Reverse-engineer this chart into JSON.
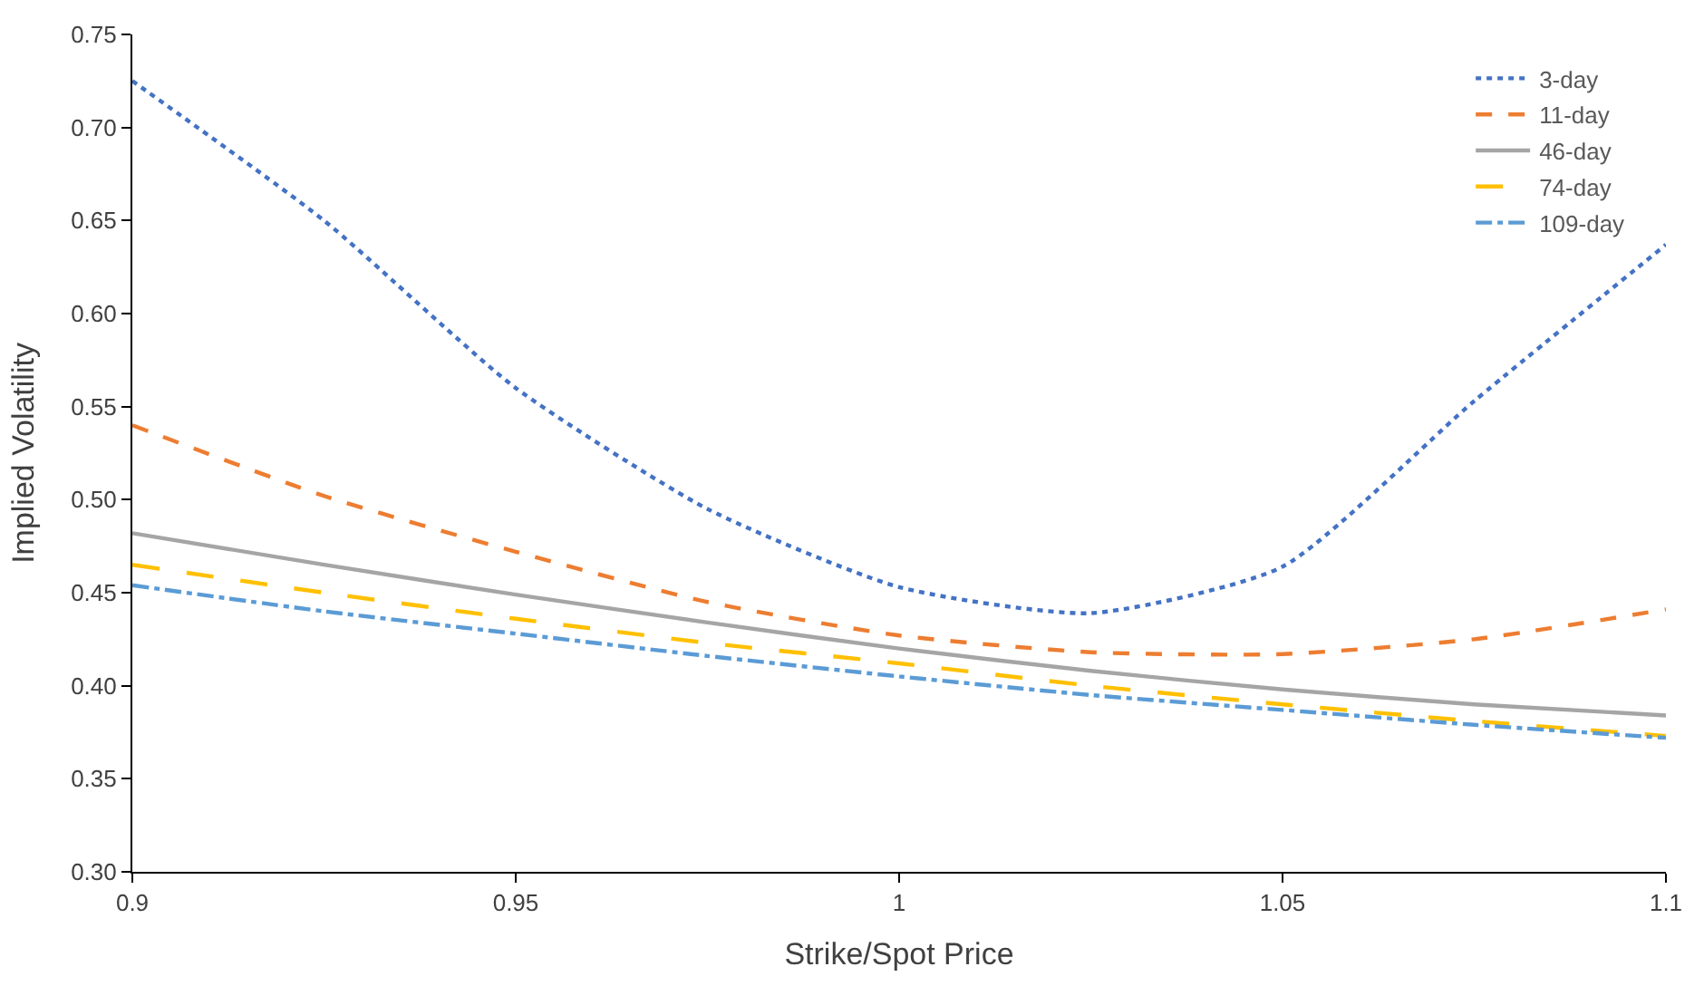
{
  "chart_data": {
    "type": "line",
    "xlabel": "Strike/Spot Price",
    "ylabel": "Implied Volatility",
    "x": [
      0.9,
      0.925,
      0.95,
      0.975,
      1.0,
      1.025,
      1.05,
      1.075,
      1.1
    ],
    "series": [
      {
        "name": "3-day",
        "color": "#4472c4",
        "line_style": "dotted",
        "values": [
          0.725,
          0.65,
          0.56,
          0.495,
          0.453,
          0.439,
          0.464,
          0.553,
          0.637
        ]
      },
      {
        "name": "11-day",
        "color": "#ed7d31",
        "line_style": "dashed",
        "values": [
          0.54,
          0.502,
          0.472,
          0.445,
          0.427,
          0.418,
          0.417,
          0.425,
          0.441
        ]
      },
      {
        "name": "46-day",
        "color": "#a5a5a5",
        "line_style": "solid",
        "values": [
          0.482,
          0.465,
          0.449,
          0.434,
          0.42,
          0.408,
          0.398,
          0.39,
          0.384
        ]
      },
      {
        "name": "74-day",
        "color": "#ffc000",
        "line_style": "longdash",
        "values": [
          0.465,
          0.45,
          0.436,
          0.423,
          0.412,
          0.4,
          0.39,
          0.381,
          0.373
        ]
      },
      {
        "name": "109-day",
        "color": "#5b9bd5",
        "line_style": "dashdot",
        "values": [
          0.454,
          0.44,
          0.428,
          0.416,
          0.405,
          0.395,
          0.387,
          0.379,
          0.372
        ]
      }
    ],
    "xlim": [
      0.9,
      1.1
    ],
    "xticks": [
      0.9,
      0.95,
      1,
      1.05,
      1.1
    ],
    "ylim": [
      0.3,
      0.75
    ],
    "yticks": [
      {
        "value": 0.3,
        "label": "0.30"
      },
      {
        "value": 0.35,
        "label": "0.35"
      },
      {
        "value": 0.4,
        "label": "0.40"
      },
      {
        "value": 0.45,
        "label": "0.45"
      },
      {
        "value": 0.5,
        "label": "0.50"
      },
      {
        "value": 0.55,
        "label": "0.55"
      },
      {
        "value": 0.6,
        "label": "0.60"
      },
      {
        "value": 0.65,
        "label": "0.65"
      },
      {
        "value": 0.7,
        "label": "0.70"
      },
      {
        "value": 0.75,
        "label": "0.75"
      }
    ],
    "legend": "top right",
    "marker": "none"
  }
}
